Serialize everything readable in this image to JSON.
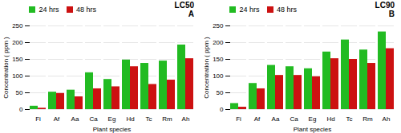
{
  "chart_data": [
    {
      "type": "bar",
      "title": "LC50",
      "subtitle": "A",
      "categories": [
        "Fi",
        "Af",
        "Aa",
        "Ca",
        "Eg",
        "Hd",
        "Tc",
        "Rm",
        "Ah"
      ],
      "series": [
        {
          "name": "24 hrs",
          "color": "#22bb22",
          "values": [
            10,
            52,
            58,
            110,
            90,
            148,
            138,
            145,
            193
          ]
        },
        {
          "name": "48 hrs",
          "color": "#cc1111",
          "values": [
            4,
            48,
            38,
            62,
            68,
            128,
            75,
            88,
            152
          ]
        }
      ],
      "xlabel": "Plant species",
      "ylabel": "Concentration ( ppm )",
      "ylim": [
        0,
        250
      ],
      "yticks": [
        0,
        50,
        100,
        150,
        200,
        250
      ],
      "grid": true,
      "legend": "upper left"
    },
    {
      "type": "bar",
      "title": "LC90",
      "subtitle": "B",
      "categories": [
        "Fi",
        "Af",
        "Aa",
        "Ca",
        "Eg",
        "Hd",
        "Tc",
        "Rm",
        "Ah"
      ],
      "series": [
        {
          "name": "24 hrs",
          "color": "#22bb22",
          "values": [
            18,
            78,
            132,
            128,
            122,
            172,
            208,
            178,
            232
          ]
        },
        {
          "name": "48 hrs",
          "color": "#cc1111",
          "values": [
            7,
            62,
            102,
            102,
            98,
            152,
            150,
            138,
            182
          ]
        }
      ],
      "xlabel": "Plant species",
      "ylabel": "Concentration ( ppm )",
      "ylim": [
        0,
        250
      ],
      "yticks": [
        0,
        50,
        100,
        150,
        200,
        250
      ],
      "grid": true,
      "legend": "upper left"
    }
  ]
}
